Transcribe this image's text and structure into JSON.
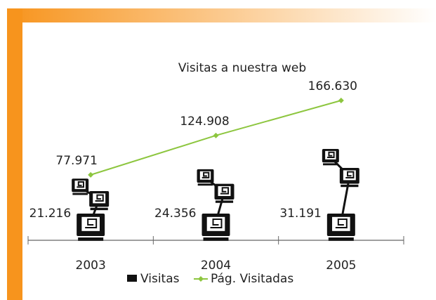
{
  "chart_data": {
    "type": "pictograph-line",
    "title": "Visitas a nuestra web",
    "categories": [
      "2003",
      "2004",
      "2005"
    ],
    "series": [
      {
        "name": "Visitas",
        "color": "#111111",
        "values": [
          21216,
          24356,
          31191
        ],
        "value_labels": [
          "21.216",
          "24.356",
          "31.191"
        ]
      },
      {
        "name": "Pág. Visitadas",
        "color": "#8dc63f",
        "values": [
          77971,
          124908,
          166630
        ],
        "value_labels": [
          "77.971",
          "124.908",
          "166.630"
        ]
      }
    ]
  }
}
